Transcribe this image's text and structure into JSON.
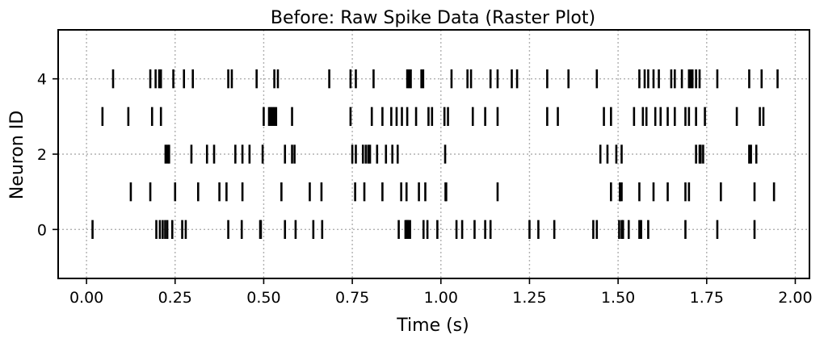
{
  "chart_data": {
    "type": "raster",
    "title": "Before: Raw Spike Data (Raster Plot)",
    "xlabel": "Time (s)",
    "ylabel": "Neuron ID",
    "xlim": [
      -0.08,
      2.04
    ],
    "ylim": [
      -1.3,
      5.3
    ],
    "x_ticks": [
      "0.00",
      "0.25",
      "0.50",
      "0.75",
      "1.00",
      "1.25",
      "1.50",
      "1.75",
      "2.00"
    ],
    "x_tick_values": [
      0.0,
      0.25,
      0.5,
      0.75,
      1.0,
      1.25,
      1.5,
      1.75,
      2.0
    ],
    "y_ticks": [
      "0",
      "2",
      "4"
    ],
    "y_tick_values": [
      0,
      2,
      4
    ],
    "grid": true,
    "colors": {
      "spike": "#000000",
      "grid": "#b0b0b0"
    },
    "series": [
      {
        "neuron": 0,
        "spike_times": [
          0.017,
          0.197,
          0.207,
          0.215,
          0.222,
          0.228,
          0.242,
          0.27,
          0.28,
          0.4,
          0.438,
          0.49,
          0.492,
          0.56,
          0.59,
          0.64,
          0.665,
          0.881,
          0.9,
          0.903,
          0.906,
          0.909,
          0.913,
          0.951,
          0.962,
          0.99,
          1.044,
          1.06,
          1.095,
          1.125,
          1.14,
          1.25,
          1.275,
          1.32,
          1.43,
          1.44,
          1.503,
          1.51,
          1.514,
          1.53,
          1.56,
          1.565,
          1.585,
          1.69,
          1.78,
          1.885
        ]
      },
      {
        "neuron": 1,
        "spike_times": [
          0.125,
          0.18,
          0.25,
          0.315,
          0.375,
          0.395,
          0.44,
          0.55,
          0.63,
          0.663,
          0.758,
          0.784,
          0.835,
          0.888,
          0.903,
          0.938,
          0.956,
          1.013,
          1.015,
          1.16,
          1.48,
          1.505,
          1.506,
          1.51,
          1.56,
          1.6,
          1.64,
          1.69,
          1.7,
          1.79,
          1.885,
          1.94
        ]
      },
      {
        "neuron": 2,
        "spike_times": [
          0.223,
          0.228,
          0.233,
          0.296,
          0.34,
          0.36,
          0.42,
          0.44,
          0.46,
          0.497,
          0.56,
          0.58,
          0.587,
          0.75,
          0.76,
          0.78,
          0.788,
          0.795,
          0.8,
          0.82,
          0.845,
          0.863,
          0.878,
          1.012,
          1.45,
          1.47,
          1.495,
          1.51,
          1.72,
          1.73,
          1.733,
          1.74,
          1.87,
          1.875,
          1.89
        ]
      },
      {
        "neuron": 3,
        "spike_times": [
          0.045,
          0.118,
          0.185,
          0.21,
          0.5,
          0.515,
          0.52,
          0.525,
          0.53,
          0.535,
          0.58,
          0.745,
          0.805,
          0.835,
          0.86,
          0.875,
          0.89,
          0.905,
          0.93,
          0.965,
          0.975,
          1.01,
          1.02,
          1.09,
          1.125,
          1.16,
          1.3,
          1.33,
          1.46,
          1.48,
          1.545,
          1.57,
          1.58,
          1.605,
          1.62,
          1.64,
          1.66,
          1.69,
          1.7,
          1.72,
          1.745,
          1.835,
          1.9,
          1.91
        ]
      },
      {
        "neuron": 4,
        "spike_times": [
          0.075,
          0.18,
          0.195,
          0.205,
          0.21,
          0.245,
          0.275,
          0.3,
          0.4,
          0.41,
          0.48,
          0.53,
          0.54,
          0.685,
          0.745,
          0.76,
          0.81,
          0.905,
          0.91,
          0.915,
          0.945,
          0.95,
          1.03,
          1.075,
          1.085,
          1.14,
          1.16,
          1.2,
          1.215,
          1.3,
          1.36,
          1.44,
          1.56,
          1.575,
          1.585,
          1.6,
          1.615,
          1.65,
          1.66,
          1.68,
          1.7,
          1.705,
          1.71,
          1.72,
          1.73,
          1.78,
          1.87,
          1.905,
          1.95
        ]
      }
    ]
  }
}
